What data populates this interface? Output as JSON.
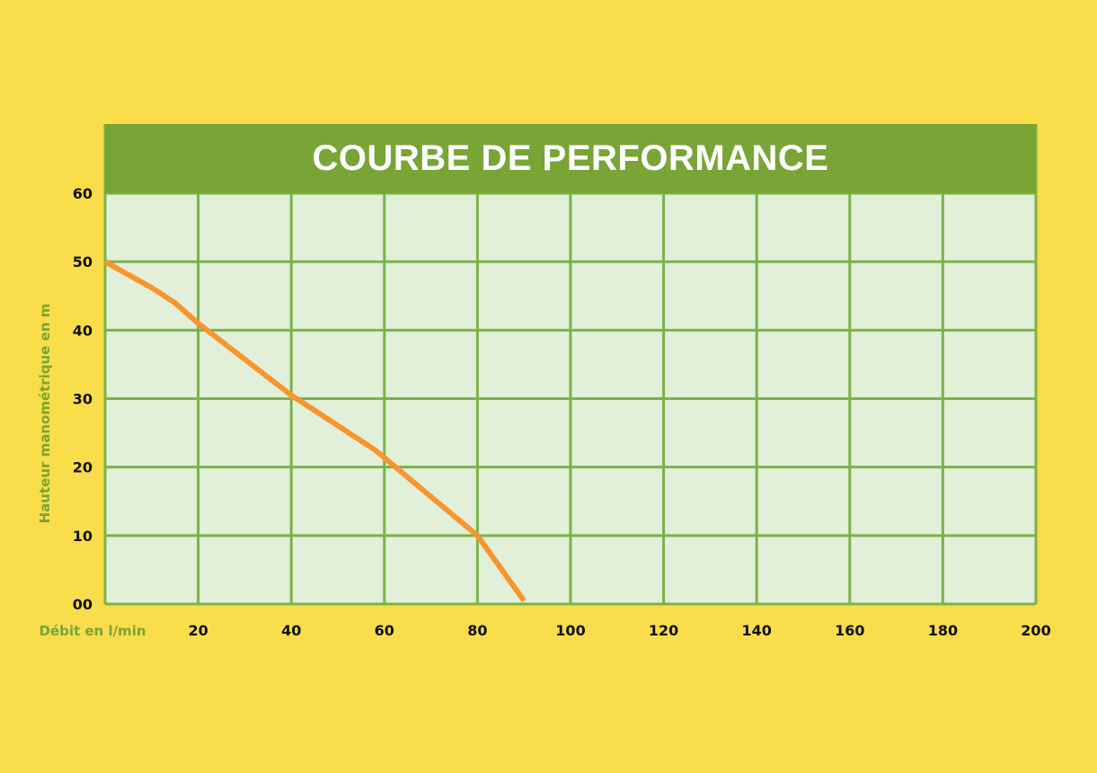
{
  "chart_data": {
    "type": "line",
    "title": "COURBE DE PERFORMANCE",
    "xlabel": "Débit en l/min",
    "ylabel": "Hauteur manométrique en m",
    "xlim": [
      0,
      200
    ],
    "ylim": [
      0,
      60
    ],
    "x_ticks": [
      "20",
      "40",
      "60",
      "80",
      "100",
      "120",
      "140",
      "160",
      "180",
      "200"
    ],
    "x_tick_values": [
      20,
      40,
      60,
      80,
      100,
      120,
      140,
      160,
      180,
      200
    ],
    "y_ticks": [
      "00",
      "10",
      "20",
      "30",
      "40",
      "50",
      "60"
    ],
    "y_tick_values": [
      0,
      10,
      20,
      30,
      40,
      50,
      60
    ],
    "grid": true,
    "series": [
      {
        "x": [
          0,
          10,
          15,
          20,
          40,
          58,
          80,
          90
        ],
        "y": [
          50,
          46.2,
          44,
          41,
          30.5,
          22.5,
          10,
          0.5
        ]
      }
    ],
    "colors": {
      "background": "#f9dd4a",
      "plot_bg": "#e2efd9",
      "grid": "#78b448",
      "title_band": "#78a535",
      "line": "#f7962f",
      "axis_label": "#78a535"
    }
  }
}
